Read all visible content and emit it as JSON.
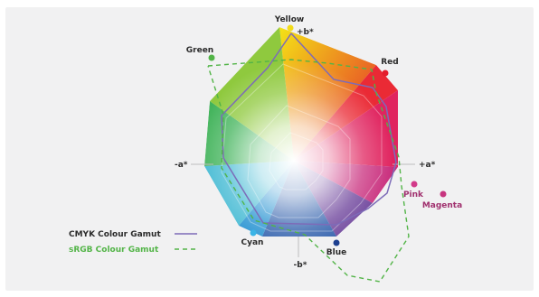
{
  "labels": {
    "yellow": "Yellow",
    "plus_b": "+b*",
    "red": "Red",
    "green": "Green",
    "minus_a": "-a*",
    "plus_a": "+a*",
    "pink": "Pink",
    "magenta": "Magenta",
    "cyan": "Cyan",
    "blue": "Blue",
    "minus_b": "-b*"
  },
  "legend": {
    "cmyk": "CMYK Colour Gamut",
    "srgb": "sRGB Colour Gamut"
  },
  "colors": {
    "background": "#f1f1f2",
    "cmyk_line": "#7d6bb8",
    "srgb_line": "#52b447",
    "yellow": "#f2dc1a",
    "red": "#e41e2d",
    "green": "#52b447",
    "pink": "#d23a8a",
    "magenta": "#c7357f",
    "cyan": "#3ab4e6",
    "blue": "#1d3f8f"
  }
}
